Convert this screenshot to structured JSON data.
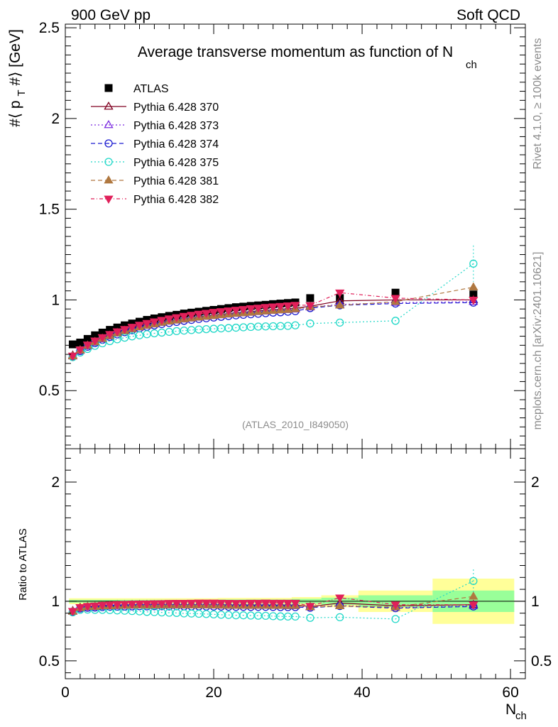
{
  "header": {
    "left": "900 GeV pp",
    "right": "Soft QCD"
  },
  "side_labels": {
    "rivet": "Rivet 4.1.0, ≥ 100k events",
    "mcplots": "mcplots.cern.ch [arXiv:2401.10621]"
  },
  "chart_data": {
    "type": "scatter",
    "title_main": "Average transverse momentum as function of N",
    "title_sub": "ch",
    "analysis_tag": "(ATLAS_2010_I849050)",
    "xlabel_main": "N",
    "xlabel_sub": "ch",
    "ylabel_main": "#⟨ p",
    "ylabel_sub": "T",
    "ylabel_tail": "#⟩ [GeV]",
    "ratio_ylabel": "Ratio to ATLAS",
    "xlim": [
      0,
      62
    ],
    "ylim": [
      0.18,
      2.52
    ],
    "ratio_ylim": [
      0.35,
      2.28
    ],
    "x_ticks": [
      0,
      20,
      40,
      60
    ],
    "x_tick_labels": [
      "0",
      "20",
      "40",
      "60"
    ],
    "y_ticks": [
      0.5,
      1,
      1.5,
      2,
      2.5
    ],
    "y_tick_labels": [
      "0.5",
      "1",
      "1.5",
      "2",
      "2.5"
    ],
    "ratio_y_ticks": [
      0.5,
      1,
      2
    ],
    "ratio_y_tick_labels": [
      "0.5",
      "1",
      "2"
    ],
    "x": [
      1,
      2,
      3,
      4,
      5,
      6,
      7,
      8,
      9,
      10,
      11,
      12,
      13,
      14,
      15,
      16,
      17,
      18,
      19,
      20,
      21,
      22,
      23,
      24,
      25,
      26,
      27,
      28,
      29,
      30,
      31,
      33,
      37,
      44.5,
      55
    ],
    "data": {
      "name": "ATLAS",
      "values": [
        0.755,
        0.765,
        0.785,
        0.805,
        0.82,
        0.835,
        0.848,
        0.86,
        0.87,
        0.88,
        0.89,
        0.898,
        0.905,
        0.912,
        0.918,
        0.925,
        0.93,
        0.935,
        0.94,
        0.945,
        0.95,
        0.955,
        0.96,
        0.963,
        0.967,
        0.97,
        0.973,
        0.977,
        0.98,
        0.983,
        0.986,
        1.01,
        1.01,
        1.04,
        1.03
      ],
      "errors": [
        0.003,
        0.003,
        0.003,
        0.003,
        0.003,
        0.003,
        0.003,
        0.003,
        0.003,
        0.003,
        0.003,
        0.003,
        0.003,
        0.003,
        0.003,
        0.003,
        0.003,
        0.003,
        0.003,
        0.003,
        0.004,
        0.004,
        0.004,
        0.004,
        0.004,
        0.004,
        0.004,
        0.005,
        0.005,
        0.005,
        0.006,
        0.008,
        0.008,
        0.01,
        0.02
      ]
    },
    "ratio_bands": [
      {
        "x0": 0.5,
        "x1": 20.5,
        "inner": 0.012,
        "outer": 0.025
      },
      {
        "x0": 20.5,
        "x1": 30.5,
        "inner": 0.015,
        "outer": 0.028
      },
      {
        "x0": 30.5,
        "x1": 34.5,
        "inner": 0.02,
        "outer": 0.035
      },
      {
        "x0": 34.5,
        "x1": 39.5,
        "inner": 0.03,
        "outer": 0.05
      },
      {
        "x0": 39.5,
        "x1": 49.5,
        "inner": 0.05,
        "outer": 0.09
      },
      {
        "x0": 49.5,
        "x1": 60.5,
        "inner": 0.09,
        "outer": 0.19
      }
    ],
    "series": [
      {
        "name": "Pythia 6.428 370",
        "color": "#800020",
        "dash": "",
        "marker": "triangle-up-open",
        "values": [
          0.695,
          0.725,
          0.75,
          0.77,
          0.788,
          0.805,
          0.82,
          0.832,
          0.843,
          0.853,
          0.862,
          0.87,
          0.878,
          0.885,
          0.891,
          0.897,
          0.902,
          0.907,
          0.912,
          0.917,
          0.921,
          0.925,
          0.929,
          0.933,
          0.936,
          0.94,
          0.943,
          0.946,
          0.949,
          0.952,
          0.955,
          0.965,
          0.995,
          1.0,
          1.0
        ],
        "ratio": [
          0.92,
          0.948,
          0.955,
          0.956,
          0.961,
          0.964,
          0.967,
          0.967,
          0.969,
          0.969,
          0.969,
          0.969,
          0.97,
          0.97,
          0.971,
          0.97,
          0.97,
          0.97,
          0.97,
          0.97,
          0.97,
          0.969,
          0.968,
          0.969,
          0.968,
          0.969,
          0.969,
          0.968,
          0.968,
          0.968,
          0.969,
          0.955,
          0.985,
          0.962,
          0.971
        ]
      },
      {
        "name": "Pythia 6.428 373",
        "color": "#7b2be0",
        "dash": "2,3",
        "marker": "triangle-up-open",
        "values": [
          0.69,
          0.72,
          0.745,
          0.765,
          0.783,
          0.8,
          0.815,
          0.828,
          0.839,
          0.849,
          0.858,
          0.866,
          0.874,
          0.881,
          0.887,
          0.893,
          0.898,
          0.903,
          0.908,
          0.912,
          0.916,
          0.92,
          0.924,
          0.927,
          0.93,
          0.934,
          0.937,
          0.94,
          0.943,
          0.945,
          0.948,
          0.96,
          0.975,
          0.985,
          0.99
        ],
        "ratio": [
          0.914,
          0.941,
          0.949,
          0.95,
          0.955,
          0.958,
          0.961,
          0.963,
          0.964,
          0.965,
          0.964,
          0.964,
          0.966,
          0.966,
          0.966,
          0.965,
          0.966,
          0.966,
          0.966,
          0.965,
          0.964,
          0.963,
          0.963,
          0.963,
          0.962,
          0.963,
          0.963,
          0.962,
          0.962,
          0.961,
          0.961,
          0.95,
          0.965,
          0.947,
          0.961
        ]
      },
      {
        "name": "Pythia 6.428 374",
        "color": "#1a1ad0",
        "dash": "6,4",
        "marker": "circle-open",
        "values": [
          0.688,
          0.718,
          0.742,
          0.762,
          0.78,
          0.796,
          0.81,
          0.822,
          0.833,
          0.843,
          0.852,
          0.86,
          0.867,
          0.873,
          0.879,
          0.885,
          0.89,
          0.895,
          0.899,
          0.903,
          0.907,
          0.911,
          0.915,
          0.918,
          0.921,
          0.924,
          0.927,
          0.93,
          0.932,
          0.935,
          0.938,
          0.955,
          0.97,
          0.98,
          0.985
        ],
        "ratio": [
          0.911,
          0.939,
          0.945,
          0.947,
          0.951,
          0.953,
          0.955,
          0.956,
          0.957,
          0.958,
          0.957,
          0.958,
          0.958,
          0.957,
          0.958,
          0.957,
          0.957,
          0.957,
          0.956,
          0.956,
          0.955,
          0.954,
          0.953,
          0.953,
          0.952,
          0.953,
          0.953,
          0.952,
          0.951,
          0.951,
          0.951,
          0.946,
          0.96,
          0.942,
          0.956
        ]
      },
      {
        "name": "Pythia 6.428 375",
        "color": "#20d8c8",
        "dash": "2,3",
        "marker": "circle-open",
        "values": [
          0.685,
          0.71,
          0.73,
          0.747,
          0.761,
          0.773,
          0.783,
          0.792,
          0.799,
          0.805,
          0.811,
          0.816,
          0.82,
          0.824,
          0.828,
          0.831,
          0.834,
          0.837,
          0.839,
          0.841,
          0.843,
          0.845,
          0.847,
          0.849,
          0.851,
          0.853,
          0.854,
          0.855,
          0.856,
          0.857,
          0.86,
          0.87,
          0.875,
          0.885,
          1.2
        ],
        "ratio": [
          0.907,
          0.928,
          0.93,
          0.928,
          0.928,
          0.926,
          0.923,
          0.921,
          0.918,
          0.915,
          0.911,
          0.909,
          0.906,
          0.904,
          0.902,
          0.898,
          0.897,
          0.895,
          0.893,
          0.89,
          0.887,
          0.885,
          0.882,
          0.882,
          0.88,
          0.879,
          0.878,
          0.875,
          0.873,
          0.872,
          0.872,
          0.861,
          0.866,
          0.851,
          1.17
        ],
        "errors": [
          0,
          0,
          0,
          0,
          0,
          0,
          0,
          0,
          0,
          0,
          0,
          0,
          0,
          0,
          0,
          0,
          0,
          0,
          0,
          0,
          0,
          0,
          0,
          0,
          0,
          0,
          0,
          0,
          0,
          0,
          0,
          0,
          0,
          0,
          0.1
        ]
      },
      {
        "name": "Pythia 6.428 381",
        "color": "#b07840",
        "dash": "6,4",
        "marker": "triangle-up-filled",
        "values": [
          0.69,
          0.722,
          0.748,
          0.768,
          0.786,
          0.802,
          0.817,
          0.829,
          0.84,
          0.85,
          0.859,
          0.867,
          0.875,
          0.882,
          0.888,
          0.894,
          0.899,
          0.904,
          0.909,
          0.913,
          0.917,
          0.921,
          0.925,
          0.928,
          0.931,
          0.935,
          0.938,
          0.941,
          0.944,
          0.946,
          0.95,
          0.962,
          0.97,
          0.99,
          1.07
        ],
        "ratio": [
          0.914,
          0.944,
          0.953,
          0.954,
          0.959,
          0.96,
          0.963,
          0.964,
          0.966,
          0.966,
          0.965,
          0.966,
          0.967,
          0.967,
          0.967,
          0.967,
          0.967,
          0.967,
          0.967,
          0.966,
          0.965,
          0.964,
          0.964,
          0.964,
          0.963,
          0.964,
          0.964,
          0.963,
          0.963,
          0.962,
          0.963,
          0.952,
          0.96,
          0.952,
          1.04
        ]
      },
      {
        "name": "Pythia 6.428 382",
        "color": "#e0205a",
        "dash": "5,3,1,3",
        "marker": "triangle-down-filled",
        "values": [
          0.692,
          0.726,
          0.753,
          0.775,
          0.794,
          0.811,
          0.826,
          0.839,
          0.851,
          0.862,
          0.872,
          0.881,
          0.889,
          0.897,
          0.904,
          0.911,
          0.917,
          0.923,
          0.928,
          0.933,
          0.937,
          0.941,
          0.945,
          0.949,
          0.953,
          0.956,
          0.96,
          0.963,
          0.966,
          0.969,
          0.972,
          0.97,
          1.04,
          1.01,
          1.0
        ],
        "ratio": [
          0.917,
          0.949,
          0.959,
          0.963,
          0.968,
          0.971,
          0.974,
          0.976,
          0.978,
          0.98,
          0.98,
          0.981,
          0.982,
          0.984,
          0.985,
          0.985,
          0.986,
          0.987,
          0.987,
          0.987,
          0.986,
          0.985,
          0.984,
          0.985,
          0.986,
          0.986,
          0.987,
          0.986,
          0.986,
          0.986,
          0.986,
          0.96,
          1.03,
          0.971,
          0.971
        ]
      }
    ]
  }
}
